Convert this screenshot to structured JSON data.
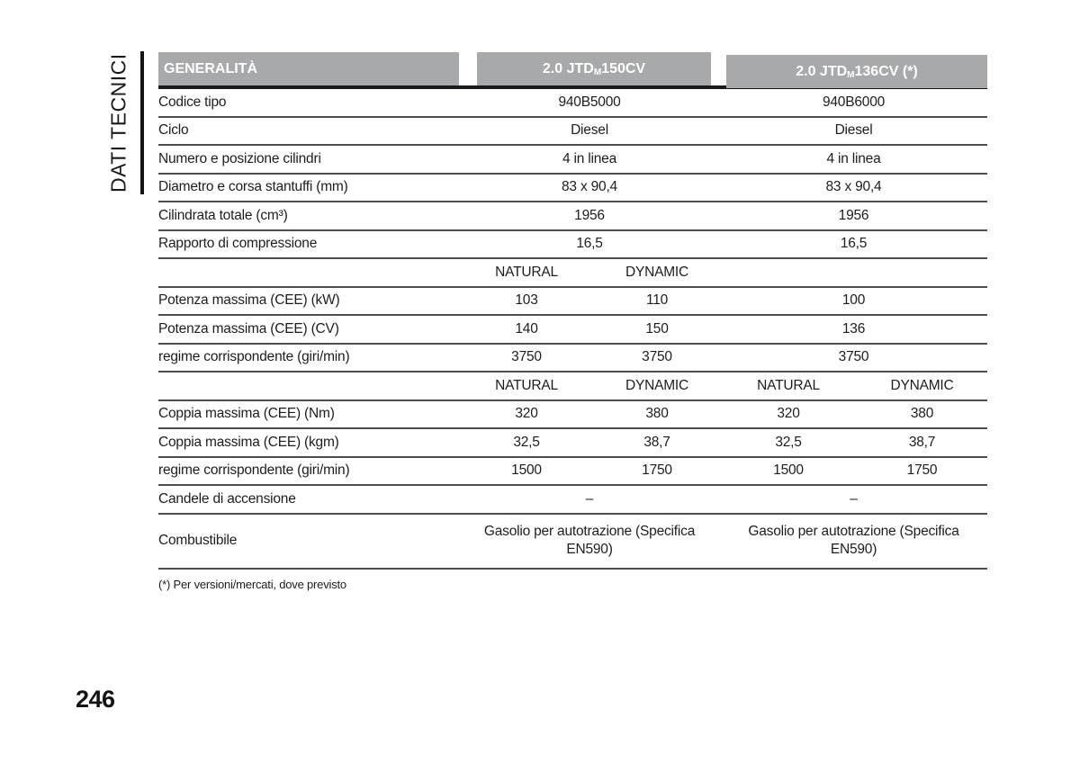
{
  "sidebar": {
    "section_label": "DATI TECNICI"
  },
  "page_number": "246",
  "table": {
    "header": {
      "title": "GENERALITÀ",
      "engine1": {
        "prefix": "2.0 JTD",
        "sub": "M",
        "suffix": " 150CV"
      },
      "engine2": {
        "prefix": "2.0 JTD",
        "sub": "M",
        "suffix": " 136CV (*)"
      }
    },
    "rows": [
      {
        "label": "Codice tipo",
        "v150": "940B5000",
        "v136": "940B6000"
      },
      {
        "label": "Ciclo",
        "v150": "Diesel",
        "v136": "Diesel"
      },
      {
        "label": "Numero e posizione cilindri",
        "v150": "4 in linea",
        "v136": "4 in linea"
      },
      {
        "label": "Diametro e corsa stantuffi (mm)",
        "v150": "83 x 90,4",
        "v136": "83 x 90,4"
      },
      {
        "label": "Cilindrata totale (cm³)",
        "v150": "1956",
        "v136": "1956"
      },
      {
        "label": "Rapporto di compressione",
        "v150": "16,5",
        "v136": "16,5"
      },
      {
        "natural150": "NATURAL",
        "dynamic150": "DYNAMIC"
      },
      {
        "label": "Potenza massima (CEE) (kW)",
        "natural150": "103",
        "dynamic150": "110",
        "v136": "100"
      },
      {
        "label": "Potenza massima (CEE) (CV)",
        "natural150": "140",
        "dynamic150": "150",
        "v136": "136"
      },
      {
        "label": "regime corrispondente (giri/min)",
        "natural150": "3750",
        "dynamic150": "3750",
        "v136": "3750"
      },
      {
        "natural150": "NATURAL",
        "dynamic150": "DYNAMIC",
        "natural136": "NATURAL",
        "dynamic136": "DYNAMIC"
      },
      {
        "label": "Coppia massima (CEE) (Nm)",
        "natural150": "320",
        "dynamic150": "380",
        "natural136": "320",
        "dynamic136": "380"
      },
      {
        "label": "Coppia massima (CEE) (kgm)",
        "natural150": "32,5",
        "dynamic150": "38,7",
        "natural136": "32,5",
        "dynamic136": "38,7"
      },
      {
        "label": "regime corrispondente (giri/min)",
        "natural150": "1500",
        "dynamic150": "1750",
        "natural136": "1500",
        "dynamic136": "1750"
      },
      {
        "label": "Candele di accensione",
        "v150": "–",
        "v136": "–"
      },
      {
        "label": "Combustibile",
        "v150": "Gasolio per autotrazione (Specifica EN590)",
        "v136": "Gasolio per autotrazione (Specifica EN590)"
      }
    ],
    "footnote": "(*) Per versioni/mercati, dove previsto"
  },
  "colors": {
    "header_gray": "#a7a9ab",
    "separator": "#4c4d4f",
    "heavy_rule": "#1a1a1a"
  }
}
